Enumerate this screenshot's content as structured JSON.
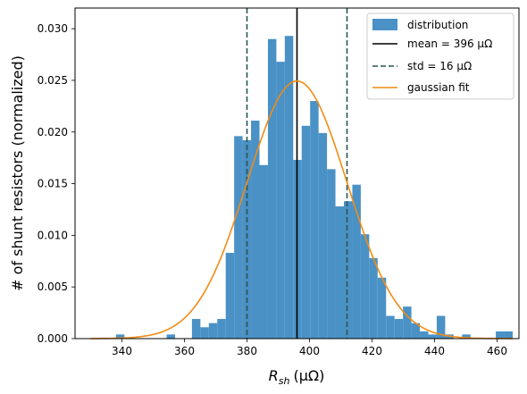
{
  "chart_data": {
    "type": "bar",
    "subtype": "histogram",
    "xlabel_main": "R",
    "xlabel_sub": "sh",
    "xlabel_unit": "(μΩ)",
    "ylabel": "# of shunt resistors (normalized)",
    "xlim": [
      325,
      467
    ],
    "ylim": [
      0,
      0.032
    ],
    "xticks": [
      340,
      360,
      380,
      400,
      420,
      440,
      460
    ],
    "yticks": [
      0.0,
      0.005,
      0.01,
      0.015,
      0.02,
      0.025,
      0.03
    ],
    "ytick_labels": [
      "0.000",
      "0.005",
      "0.010",
      "0.015",
      "0.020",
      "0.025",
      "0.030"
    ],
    "grid": false,
    "legend_position": "top-right",
    "histogram": {
      "name": "distribution",
      "color": "#4a91c6",
      "bin_edges": [
        330,
        332.7,
        335.4,
        338.1,
        340.8,
        343.5,
        346.2,
        348.9,
        351.6,
        354.3,
        357,
        359.7,
        362.4,
        365.1,
        367.8,
        370.5,
        373.2,
        375.9,
        378.6,
        381.3,
        384,
        386.7,
        389.4,
        392.1,
        394.8,
        397.5,
        400.2,
        402.9,
        405.6,
        408.3,
        411,
        413.7,
        416.4,
        419.1,
        421.8,
        424.5,
        427.2,
        429.9,
        432.6,
        435.3,
        438,
        440.7,
        443.4,
        446.1,
        448.8,
        451.5,
        454.2,
        456.9,
        459.6,
        462.3,
        465
      ],
      "values": [
        0,
        0,
        0,
        0.0004,
        0,
        0,
        0,
        0,
        0,
        0.0004,
        0,
        0,
        0.0019,
        0.0011,
        0.0015,
        0.0019,
        0.0083,
        0.0196,
        0.0192,
        0.0211,
        0.0168,
        0.029,
        0.0268,
        0.0293,
        0.0173,
        0.0206,
        0.023,
        0.0199,
        0.0164,
        0.0128,
        0.0133,
        0.0149,
        0.0101,
        0.0078,
        0.0059,
        0.0022,
        0.0019,
        0.0031,
        0.0015,
        0.0007,
        0.0004,
        0.0022,
        0.0004,
        0,
        0.0004,
        0,
        0,
        0,
        0.0007,
        0.0007
      ]
    },
    "mean_line": {
      "name": "mean = 396 μΩ",
      "x": 396,
      "color": "#000000"
    },
    "std_lines": {
      "name": "std = 16 μΩ",
      "x": [
        380,
        412
      ],
      "color": "#2b5454"
    },
    "gaussian_fit": {
      "name": "gaussian fit",
      "mean": 396,
      "std": 16,
      "x_range": [
        330,
        465
      ],
      "color": "#f28c13"
    }
  }
}
